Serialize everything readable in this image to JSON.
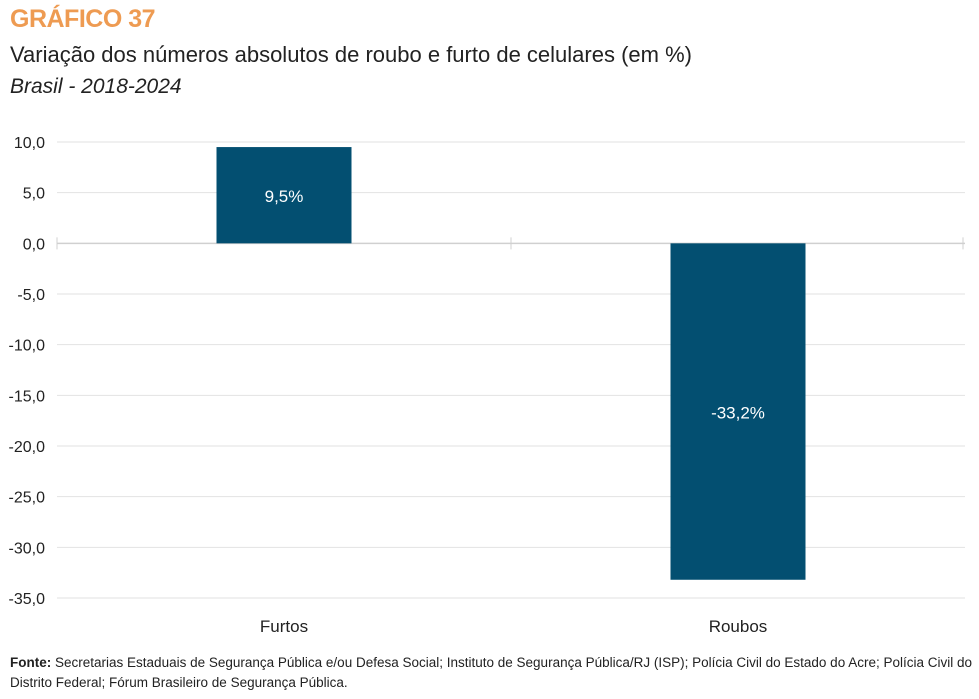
{
  "header": {
    "kicker": "GRÁFICO 37",
    "title": "Variação dos números absolutos de roubo e furto de celulares (em %)",
    "subtitle": "Brasil - 2018-2024"
  },
  "chart_data": {
    "type": "bar",
    "categories": [
      "Furtos",
      "Roubos"
    ],
    "values": [
      9.5,
      -33.2
    ],
    "data_labels": [
      "9,5%",
      "-33,2%"
    ],
    "ylim": [
      -35,
      10
    ],
    "yticks": [
      10,
      5,
      0,
      -5,
      -10,
      -15,
      -20,
      -25,
      -30,
      -35
    ],
    "ytick_labels": [
      "10,0",
      "5,0",
      "0,0",
      "-5,0",
      "-10,0",
      "-15,0",
      "-20,0",
      "-25,0",
      "-30,0",
      "-35,0"
    ],
    "grid": true,
    "bar_color": "#034F71",
    "xlabel": "",
    "ylabel": ""
  },
  "footer": {
    "source_label": "Fonte:",
    "source_text": "Secretarias Estaduais de Segurança Pública e/ou Defesa Social; Instituto de Segurança Pública/RJ (ISP); Polícia Civil do Estado do Acre; Polícia Civil do Distrito Federal; Fórum Brasileiro de Segurança Pública."
  }
}
